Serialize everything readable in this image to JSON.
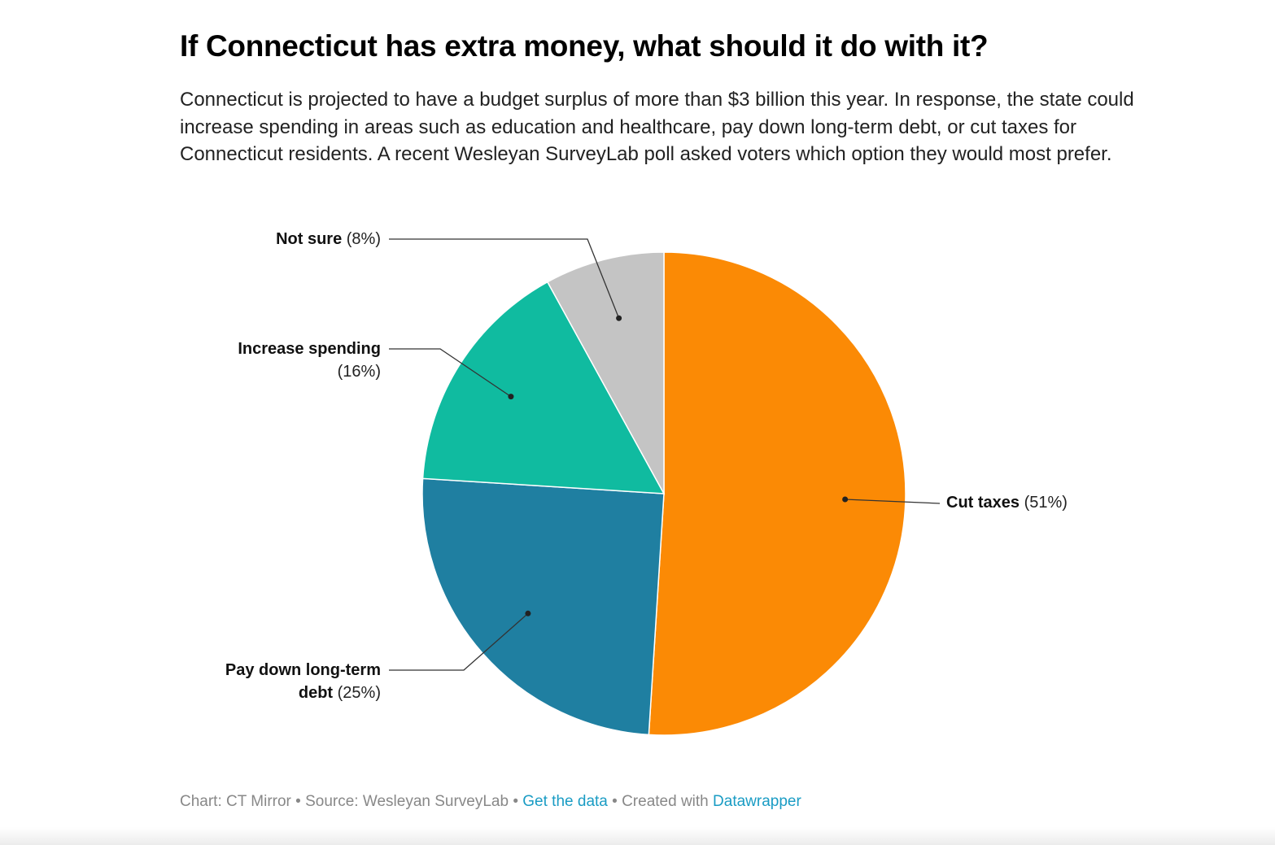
{
  "chart_data": {
    "type": "pie",
    "title": "If Connecticut has extra money, what should it do with it?",
    "subtitle": "Connecticut is projected to have a budget surplus of more than $3 billion this year. In response, the state could increase spending in areas such as education and healthcare, pay down long-term debt, or cut taxes for Connecticut residents. A recent Wesleyan SurveyLab poll asked voters which option they would most prefer.",
    "categories": [
      "Cut taxes",
      "Pay down long-term debt",
      "Increase spending",
      "Not sure"
    ],
    "values": [
      51,
      25,
      16,
      8
    ],
    "value_labels": [
      "(51%)",
      "(25%)",
      "(16%)",
      "(8%)"
    ],
    "colors": [
      "#fb8a05",
      "#1f7fa1",
      "#10bba0",
      "#c4c4c4"
    ],
    "footer": {
      "credit": "Chart: CT Mirror",
      "separator": "•",
      "source": "Source: Wesleyan SurveyLab",
      "data_link": "Get the data",
      "created": "Created with",
      "tool": "Datawrapper"
    }
  }
}
